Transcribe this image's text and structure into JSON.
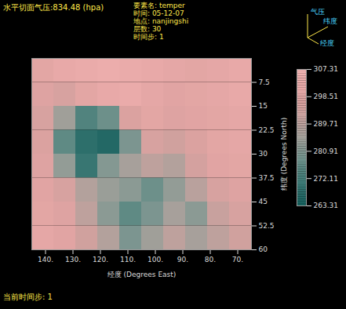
{
  "chart_data": {
    "type": "heatmap",
    "annotations": {
      "pressure": "水平切面气压:834.48 (hpa)",
      "info": [
        "要素名: temper",
        "时间: 05-12-07",
        "地点: nanjingshi",
        "层数: 30",
        "时间步: 1"
      ],
      "axes_indicator": [
        "气压",
        "纬度",
        "经度"
      ],
      "status": "当前时间步: 1"
    },
    "x_label": "经度 (Degrees East)",
    "y_label": "纬度 (Degrees North)",
    "xlim": [
      145,
      65
    ],
    "ylim": [
      0,
      60
    ],
    "xticks": [
      {
        "value": 140,
        "label": "140."
      },
      {
        "value": 130,
        "label": "130."
      },
      {
        "value": 120,
        "label": "120."
      },
      {
        "value": 110,
        "label": "110."
      },
      {
        "value": 100,
        "label": "100."
      },
      {
        "value": 90,
        "label": "90."
      },
      {
        "value": 80,
        "label": "80."
      },
      {
        "value": 70,
        "label": "70."
      }
    ],
    "yticks": [
      7.5,
      15,
      22.5,
      30,
      37.5,
      45,
      52.5,
      60
    ],
    "x_edges": [
      145,
      137,
      129,
      121,
      113,
      105,
      97,
      89,
      81,
      73,
      65
    ],
    "y_edges": [
      0,
      7.5,
      15,
      22.5,
      30,
      37.5,
      45,
      52.5,
      60
    ],
    "cells": [
      [
        300,
        302,
        303,
        304,
        303,
        302,
        301,
        300,
        301,
        302
      ],
      [
        298,
        296,
        300,
        302,
        303,
        301,
        299,
        300,
        301,
        302
      ],
      [
        296,
        285,
        274,
        278,
        297,
        300,
        298,
        299,
        300,
        301
      ],
      [
        297,
        276,
        268,
        266,
        280,
        296,
        294,
        297,
        300,
        301
      ],
      [
        298,
        283,
        270,
        281,
        286,
        290,
        288,
        295,
        299,
        300
      ],
      [
        299,
        296,
        288,
        284,
        282,
        278,
        283,
        289,
        296,
        298
      ],
      [
        300,
        298,
        290,
        282,
        276,
        280,
        286,
        282,
        292,
        296
      ],
      [
        301,
        299,
        294,
        288,
        280,
        285,
        290,
        286,
        290,
        294
      ]
    ],
    "colorbar": {
      "range": [
        263.31,
        307.31
      ],
      "ticks": [
        263.31,
        272.11,
        280.91,
        289.71,
        298.51,
        307.31
      ]
    }
  }
}
